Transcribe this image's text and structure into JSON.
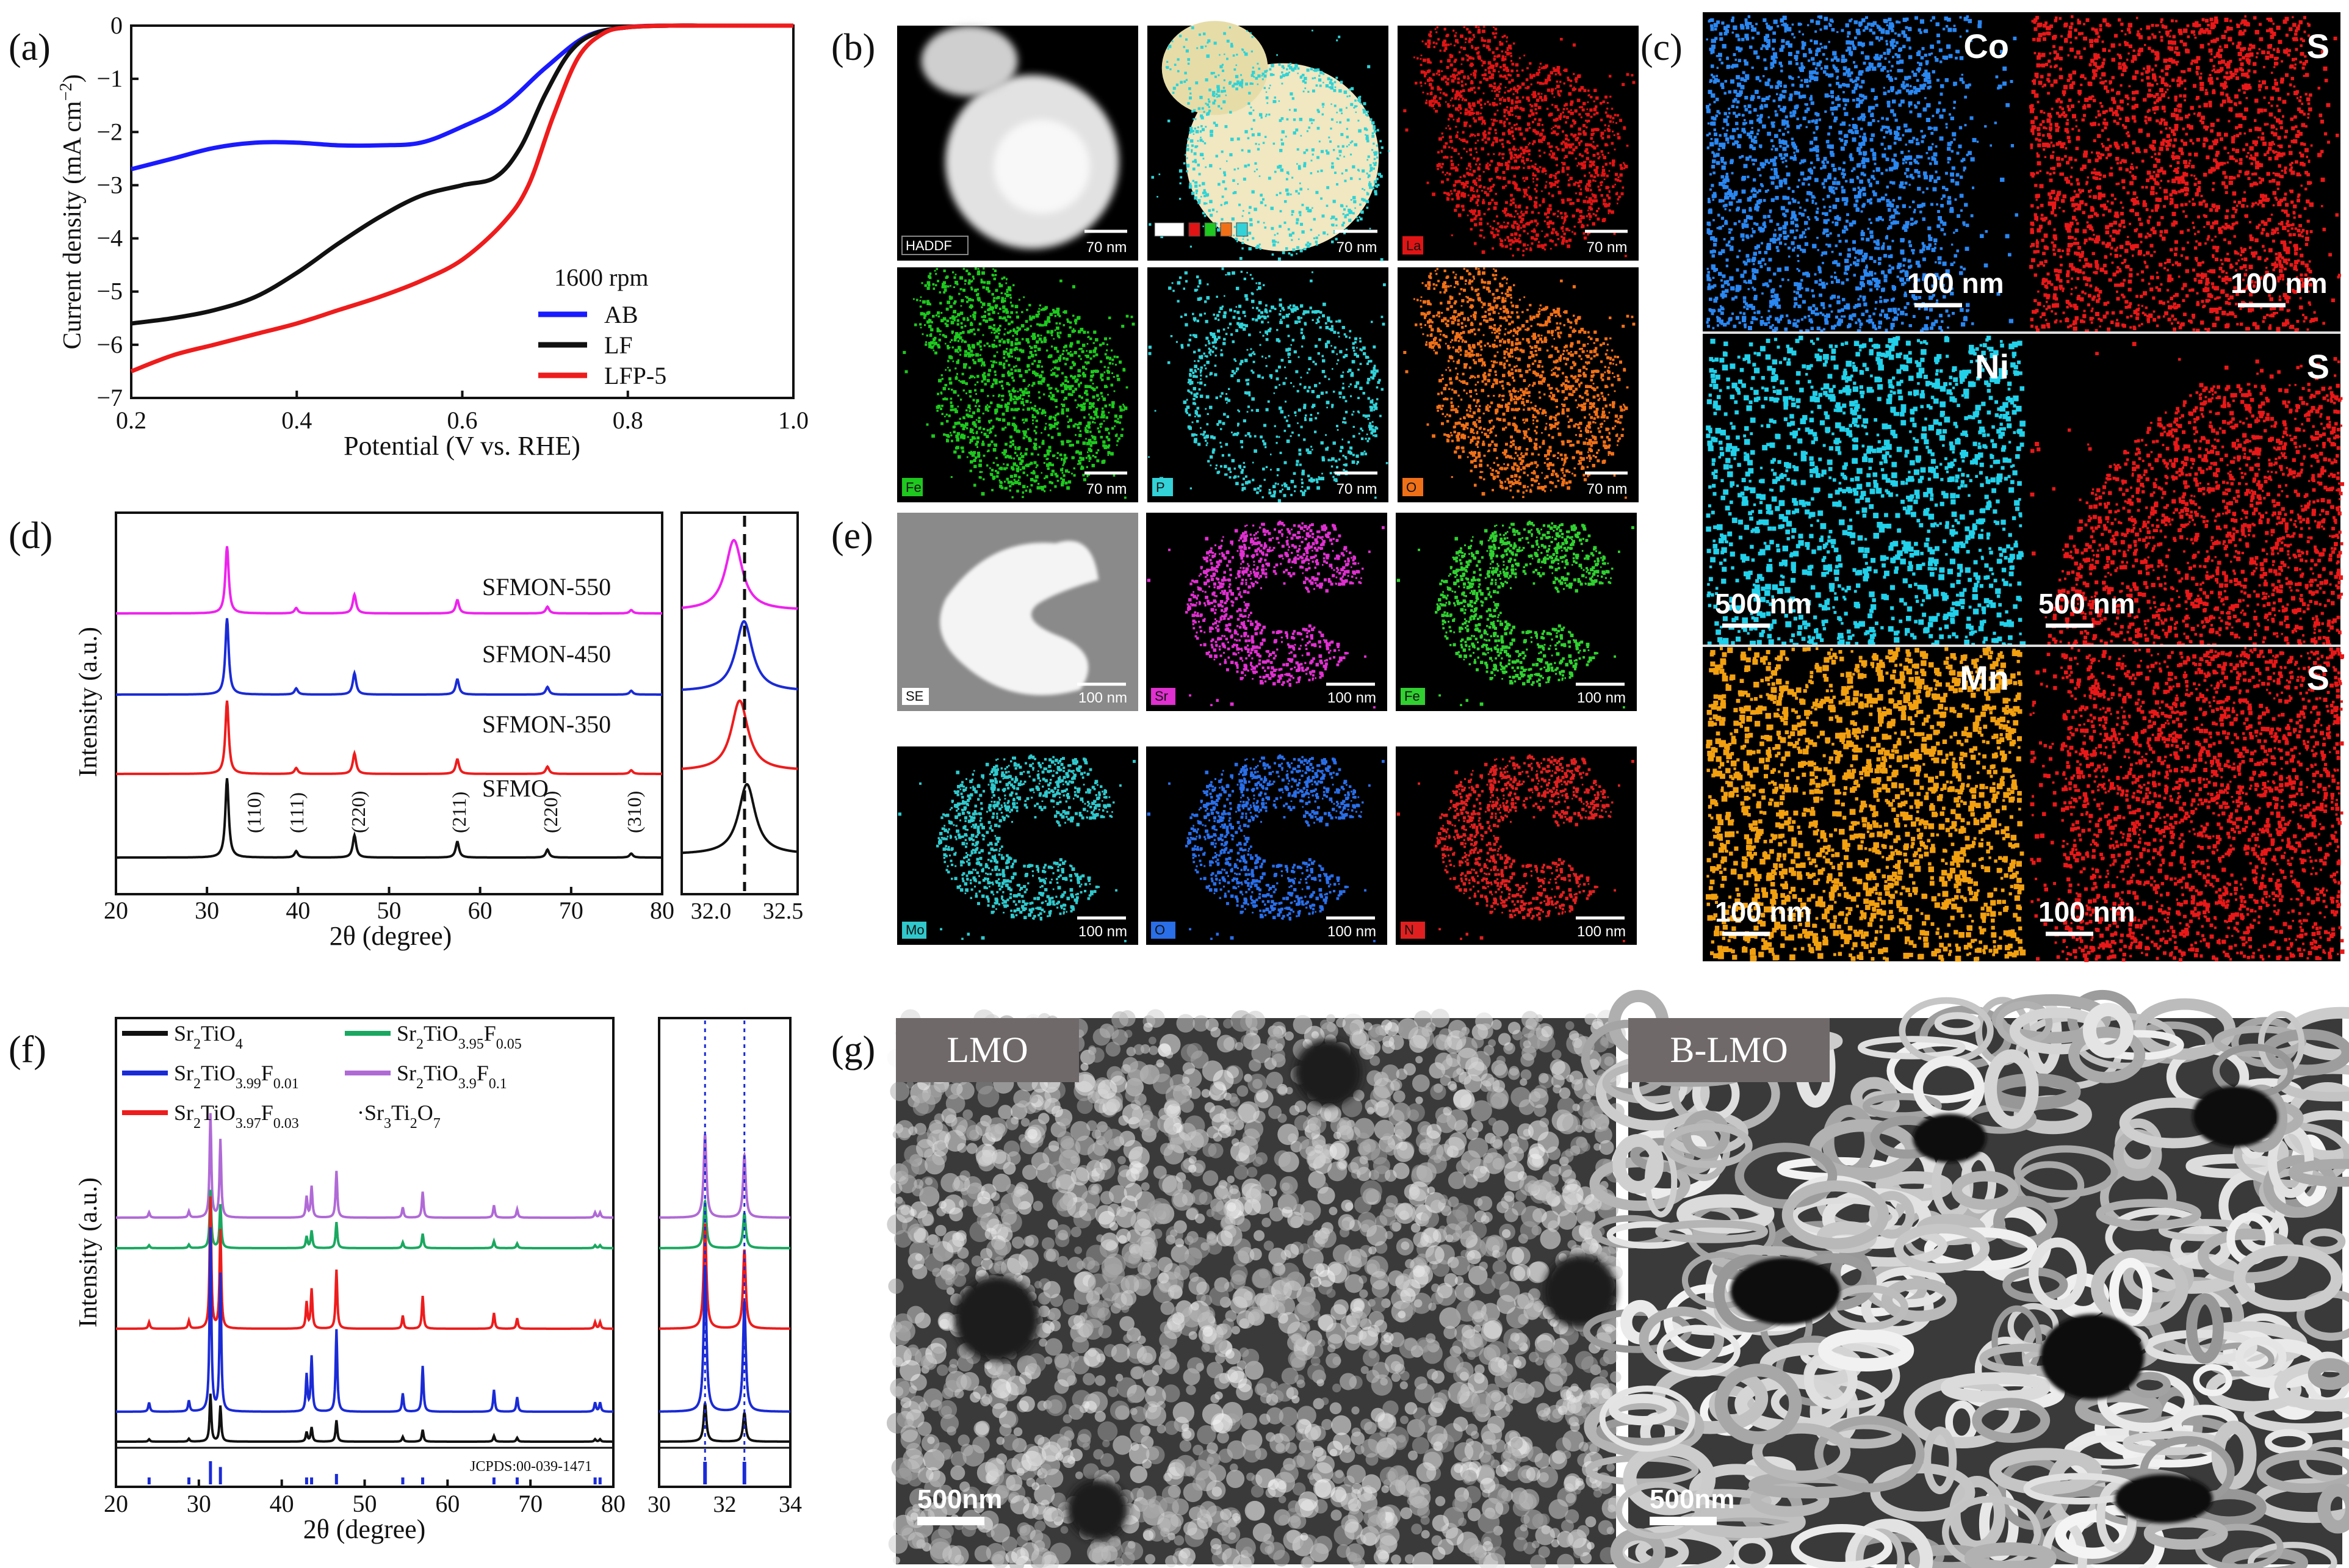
{
  "panel_labels": {
    "a": "(a)",
    "b": "(b)",
    "c": "(c)",
    "d": "(d)",
    "e": "(e)",
    "f": "(f)",
    "g": "(g)"
  },
  "chart_data": [
    {
      "panel": "a",
      "type": "line",
      "xlabel": "Potential (V vs. RHE)",
      "ylabel": "Current density (mA cm",
      "ylabel_sup": "−2",
      "ylabel_end": ")",
      "xlim": [
        0.2,
        1.0
      ],
      "ylim": [
        -7,
        0
      ],
      "xticks": [
        "0.2",
        "0.4",
        "0.6",
        "0.8",
        "1.0"
      ],
      "yticks": [
        "0",
        "−1",
        "−2",
        "−3",
        "−4",
        "−5",
        "−6",
        "−7"
      ],
      "legend_title": "1600 rpm",
      "legend_position": "bottom-right",
      "series": [
        {
          "name": "AB",
          "color": "#1a1aff",
          "x": [
            0.2,
            0.25,
            0.3,
            0.35,
            0.4,
            0.45,
            0.5,
            0.55,
            0.6,
            0.65,
            0.7,
            0.75,
            0.8,
            0.85,
            0.9,
            1.0
          ],
          "y": [
            -2.7,
            -2.5,
            -2.3,
            -2.2,
            -2.2,
            -2.25,
            -2.25,
            -2.2,
            -1.9,
            -1.5,
            -0.8,
            -0.2,
            -0.03,
            0,
            0,
            0
          ]
        },
        {
          "name": "LF",
          "color": "#111111",
          "x": [
            0.2,
            0.25,
            0.3,
            0.35,
            0.4,
            0.45,
            0.5,
            0.55,
            0.6,
            0.64,
            0.67,
            0.7,
            0.73,
            0.76,
            0.8,
            0.85,
            0.9,
            1.0
          ],
          "y": [
            -5.6,
            -5.5,
            -5.35,
            -5.1,
            -4.65,
            -4.1,
            -3.6,
            -3.2,
            -3.0,
            -2.85,
            -2.3,
            -1.3,
            -0.5,
            -0.15,
            -0.03,
            0,
            0,
            0
          ]
        },
        {
          "name": "LFP-5",
          "color": "#ee1c1c",
          "x": [
            0.2,
            0.25,
            0.3,
            0.35,
            0.4,
            0.45,
            0.5,
            0.55,
            0.6,
            0.65,
            0.68,
            0.71,
            0.74,
            0.77,
            0.8,
            0.85,
            0.9,
            1.0
          ],
          "y": [
            -6.5,
            -6.2,
            -6.0,
            -5.8,
            -5.6,
            -5.35,
            -5.1,
            -4.8,
            -4.4,
            -3.7,
            -3.0,
            -1.7,
            -0.6,
            -0.15,
            -0.03,
            0,
            0,
            0
          ]
        }
      ]
    },
    {
      "panel": "d",
      "type": "line",
      "xlabel": "2θ (degree)",
      "ylabel": "Intensity (a.u.)",
      "xlim": [
        20,
        80
      ],
      "xticks": [
        "20",
        "30",
        "40",
        "50",
        "60",
        "70",
        "80"
      ],
      "inset_xticks": [
        "32.0",
        "32.5"
      ],
      "peaks": [
        32.2,
        39.8,
        46.2,
        57.5,
        67.4,
        76.6
      ],
      "peak_heights": [
        1.0,
        0.08,
        0.28,
        0.2,
        0.1,
        0.05
      ],
      "peak_labels": [
        "(110)",
        "(111)",
        "(220)",
        "(211)",
        "(220)",
        "(310)"
      ],
      "series": [
        {
          "name": "SFMON-550",
          "color": "#ee22ee"
        },
        {
          "name": "SFMON-450",
          "color": "#1a2bd6"
        },
        {
          "name": "SFMON-350",
          "color": "#ee1c1c"
        },
        {
          "name": "SFMO",
          "color": "#111111"
        }
      ]
    },
    {
      "panel": "f",
      "type": "line",
      "xlabel": "2θ (degree)",
      "ylabel": "Intensity (a.u.)",
      "xlim": [
        20,
        80
      ],
      "xticks": [
        "20",
        "30",
        "40",
        "50",
        "60",
        "70",
        "80"
      ],
      "inset_xlim": [
        30,
        34
      ],
      "inset_xticks": [
        "30",
        "32",
        "34"
      ],
      "reference_label": "JCPDS:00-039-1471",
      "peaks": [
        24.0,
        28.8,
        31.4,
        32.6,
        43.0,
        43.6,
        46.6,
        54.6,
        57.0,
        65.6,
        68.4,
        77.8,
        78.4
      ],
      "peak_heights": [
        0.05,
        0.06,
        1.0,
        0.75,
        0.2,
        0.3,
        0.45,
        0.1,
        0.25,
        0.12,
        0.08,
        0.05,
        0.05
      ],
      "legend": [
        {
          "main": "Sr",
          "s1": "2",
          "m2": "TiO",
          "s2": "4",
          "m3": "",
          "s3": "",
          "color": "#111111"
        },
        {
          "main": "Sr",
          "s1": "2",
          "m2": "TiO",
          "s2": "3.99",
          "m3": "F",
          "s3": "0.01",
          "color": "#1a2bd6"
        },
        {
          "main": "Sr",
          "s1": "2",
          "m2": "TiO",
          "s2": "3.97",
          "m3": "F",
          "s3": "0.03",
          "color": "#ee1c1c"
        },
        {
          "main": "Sr",
          "s1": "2",
          "m2": "TiO",
          "s2": "3.95",
          "m3": "F",
          "s3": "0.05",
          "color": "#1aa860"
        },
        {
          "main": "Sr",
          "s1": "2",
          "m2": "TiO",
          "s2": "3.9",
          "m3": "F",
          "s3": "0.1",
          "color": "#b06ad6"
        },
        {
          "main": "·Sr",
          "s1": "3",
          "m2": "Ti",
          "s2": "2",
          "m3": "O",
          "s3": "7",
          "color": ""
        }
      ]
    }
  ],
  "panel_b": {
    "tiles": [
      {
        "label": "HADDF",
        "scale": "70 nm",
        "color": "#e8e8e8",
        "chip": "#ffffff"
      },
      {
        "label": "",
        "scale": "70 nm",
        "color": "#f2e6b8",
        "chip": ""
      },
      {
        "label": "La",
        "scale": "70 nm",
        "color": "#e01414",
        "chip": "#e01414"
      },
      {
        "label": "Fe",
        "scale": "70 nm",
        "color": "#1ec81e",
        "chip": "#1ec81e"
      },
      {
        "label": "P",
        "scale": "70 nm",
        "color": "#32d2d8",
        "chip": "#32d2d8"
      },
      {
        "label": "O",
        "scale": "70 nm",
        "color": "#f07018",
        "chip": "#f07018"
      }
    ]
  },
  "panel_c": {
    "tiles": [
      {
        "element": "Co",
        "scale": "100 nm",
        "color": "#2a86f0"
      },
      {
        "element": "S",
        "scale": "100 nm",
        "color": "#e81818"
      },
      {
        "element": "Ni",
        "scale": "500 nm",
        "color": "#22d0ea"
      },
      {
        "element": "S",
        "scale": "500 nm",
        "color": "#e81818"
      },
      {
        "element": "Mn",
        "scale": "100 nm",
        "color": "#f2a010"
      },
      {
        "element": "S",
        "scale": "100 nm",
        "color": "#e81818"
      }
    ]
  },
  "panel_e": {
    "tiles": [
      {
        "label": "SE",
        "scale": "100 nm",
        "color": "#e8e8e8"
      },
      {
        "label": "Sr",
        "scale": "100 nm",
        "color": "#e030d0"
      },
      {
        "label": "Fe",
        "scale": "100 nm",
        "color": "#30d030"
      },
      {
        "label": "Mo",
        "scale": "100 nm",
        "color": "#30c8cc"
      },
      {
        "label": "O",
        "scale": "100 nm",
        "color": "#2a6ee8"
      },
      {
        "label": "N",
        "scale": "100 nm",
        "color": "#e02020"
      }
    ]
  },
  "panel_g": {
    "images": [
      {
        "label": "LMO",
        "scale": "500nm"
      },
      {
        "label": "B-LMO",
        "scale": "500nm"
      }
    ]
  }
}
